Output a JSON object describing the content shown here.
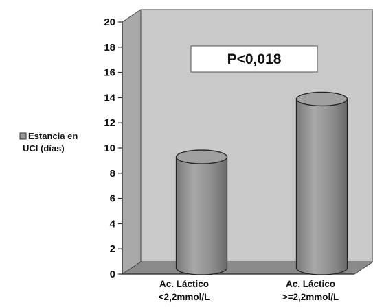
{
  "chart_data": {
    "type": "bar",
    "categories": [
      [
        "Ac. Láctico",
        "<2,2mmol/L"
      ],
      [
        ">=2,2mmol/L"
      ]
    ],
    "category_lines": [
      [
        "Ac. Láctico",
        "<2,2mmol/L"
      ],
      [
        "Ac. Láctico",
        ">=2,2mmol/L"
      ]
    ],
    "series": [
      {
        "name": "Estancia en UCI (días)",
        "values": [
          8.8,
          13.4
        ]
      }
    ],
    "legend": {
      "lines": [
        "Estancia en",
        "UCI (días)"
      ],
      "position": "left"
    },
    "annotation": "P<0,018",
    "ylim": [
      0,
      20
    ],
    "yticks": [
      "0",
      "2",
      "4",
      "6",
      "8",
      "10",
      "12",
      "14",
      "16",
      "18",
      "20"
    ],
    "grid": false,
    "style": "3d-cylinder",
    "colors": {
      "wall": "#c8c8c8",
      "floor": "#8c8c8c",
      "bar": "#9a9a9a"
    }
  }
}
